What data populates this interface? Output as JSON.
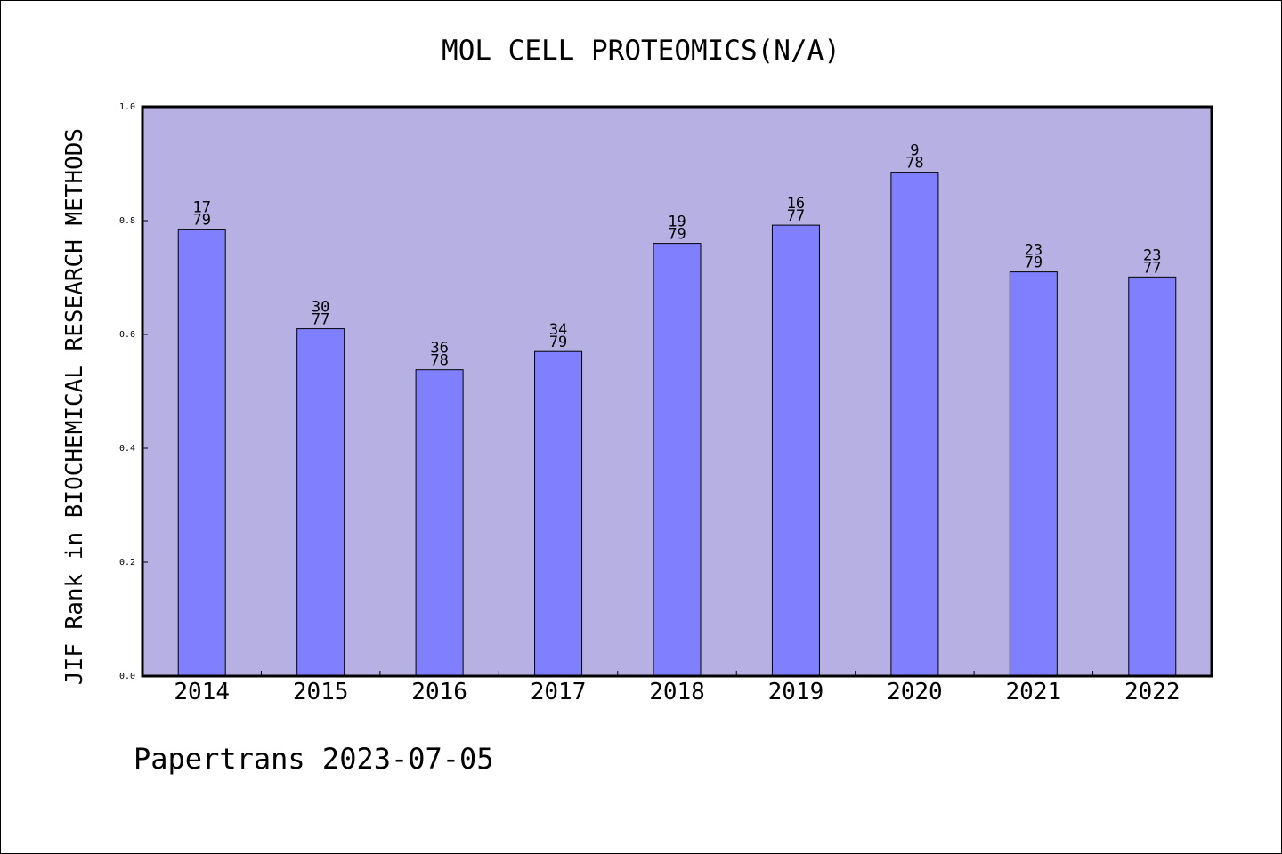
{
  "chart_data": {
    "type": "bar",
    "title": "MOL CELL PROTEOMICS(N/A)",
    "ylabel": "JIF Rank in BIOCHEMICAL RESEARCH METHODS",
    "xlabel": "",
    "ylim": [
      0,
      1.0
    ],
    "yticks": [
      "0.0",
      "0.2",
      "0.4",
      "0.6",
      "0.8",
      "1.0"
    ],
    "grid": false,
    "categories": [
      "2014",
      "2015",
      "2016",
      "2017",
      "2018",
      "2019",
      "2020",
      "2021",
      "2022"
    ],
    "values": [
      0.785,
      0.61,
      0.538,
      0.57,
      0.76,
      0.792,
      0.885,
      0.71,
      0.701
    ],
    "rank_labels": [
      {
        "rank": "17",
        "total": "79"
      },
      {
        "rank": "30",
        "total": "77"
      },
      {
        "rank": "36",
        "total": "78"
      },
      {
        "rank": "34",
        "total": "79"
      },
      {
        "rank": "19",
        "total": "79"
      },
      {
        "rank": "16",
        "total": "77"
      },
      {
        "rank": "9",
        "total": "78"
      },
      {
        "rank": "23",
        "total": "79"
      },
      {
        "rank": "23",
        "total": "77"
      }
    ],
    "colors": {
      "plot_background": "#b6b0e3",
      "bar_fill": "#8080ff",
      "bar_stroke": "#000000"
    }
  },
  "footer": {
    "watermark": "Papertrans 2023-07-05"
  }
}
